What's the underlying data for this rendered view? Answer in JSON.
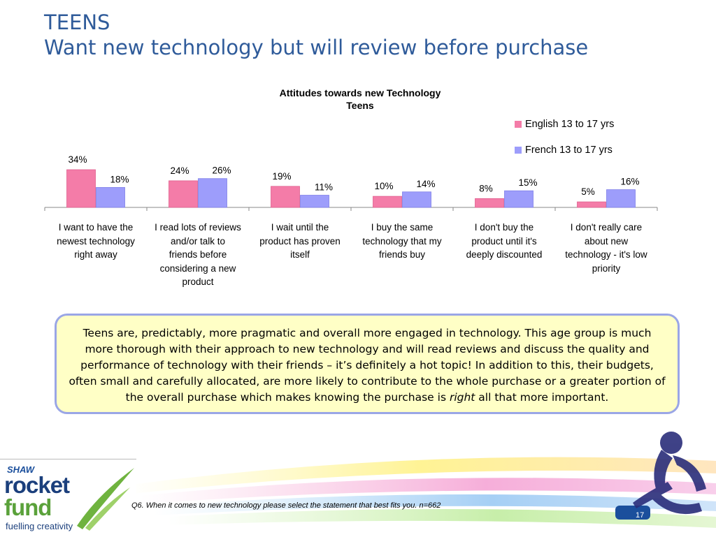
{
  "header": {
    "title_line1": "TEENS",
    "title_line2": "Want new technology but will review before purchase"
  },
  "chart_data": {
    "type": "bar",
    "title_line1": "Attitudes towards new Technology",
    "title_line2": "Teens",
    "categories": [
      [
        "I want to have the",
        "newest technology",
        "right away"
      ],
      [
        "I read lots of reviews",
        "and/or talk to",
        "friends before",
        "considering a new",
        "product"
      ],
      [
        "I wait until the",
        "product has proven",
        "itself"
      ],
      [
        "I buy the same",
        "technology that my",
        "friends buy"
      ],
      [
        "I don't buy the",
        "product until it's",
        "deeply discounted"
      ],
      [
        "I don't really care",
        "about new",
        "technology - it's low",
        "priority"
      ]
    ],
    "series": [
      {
        "name": "English 13 to 17 yrs",
        "color": "#f47ca8",
        "values": [
          34,
          24,
          19,
          10,
          8,
          5
        ],
        "labels": [
          "34%",
          "24%",
          "19%",
          "10%",
          "8%",
          "5%"
        ]
      },
      {
        "name": "French 13 to 17 yrs",
        "color": "#9d9dfb",
        "values": [
          18,
          26,
          11,
          14,
          15,
          16
        ],
        "labels": [
          "18%",
          "26%",
          "11%",
          "14%",
          "15%",
          "16%"
        ]
      }
    ],
    "ylim": [
      0,
      40
    ],
    "grid": false,
    "legend": "top-right"
  },
  "note": {
    "text_before": "Teens are, predictably, more pragmatic and overall more engaged in technology. This age group is much more thorough with their approach to new technology and will read reviews and discuss the quality and performance of technology with their friends – it’s definitely a hot topic! In addition to this, their budgets, often small and carefully allocated, are more likely to contribute to the whole purchase or a greater portion of the overall purchase which makes knowing the purchase is ",
    "emphasis": "right",
    "text_after": " all that more important."
  },
  "footer": {
    "question": "Q6. When it comes to new technology please select the statement that best fits you. n=662",
    "page_number": "17",
    "logo": {
      "brand": "SHAW",
      "word1": "rocket",
      "word2": "fund",
      "tagline": "fuelling creativity"
    }
  }
}
